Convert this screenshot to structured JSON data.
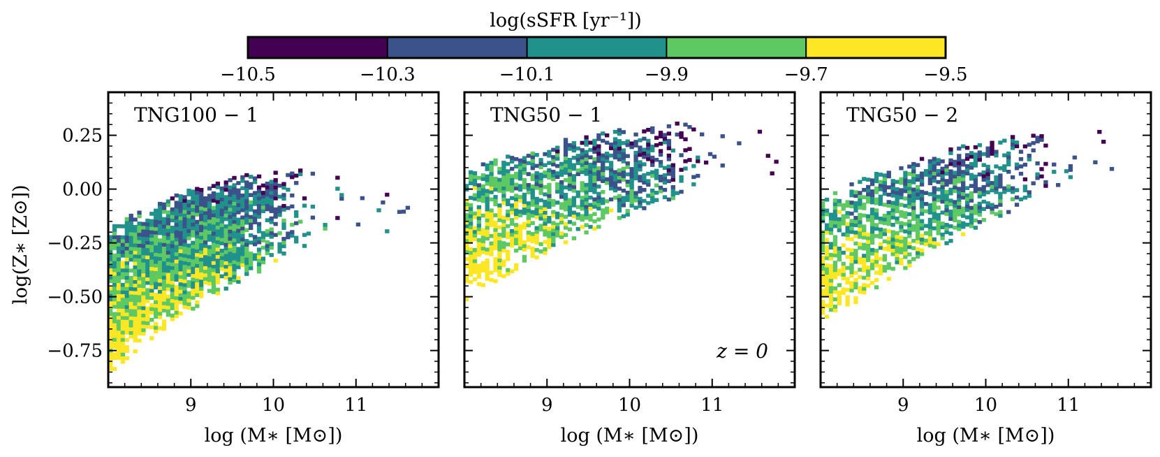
{
  "chart_data": {
    "type": "heatmap",
    "colorbar": {
      "label": "log(sSFR [yr⁻¹])",
      "ticks": [
        "−10.5",
        "−10.3",
        "−10.1",
        "−9.9",
        "−9.7",
        "−9.5"
      ],
      "range": [
        -10.5,
        -9.5
      ],
      "bins": [
        {
          "from": -10.5,
          "to": -10.3,
          "color": "#440154"
        },
        {
          "from": -10.3,
          "to": -10.1,
          "color": "#3b528b"
        },
        {
          "from": -10.1,
          "to": -9.9,
          "color": "#21918c"
        },
        {
          "from": -9.9,
          "to": -9.7,
          "color": "#5ec962"
        },
        {
          "from": -9.7,
          "to": -9.5,
          "color": "#fde725"
        }
      ]
    },
    "xlabel": "log (M∗ [M⊙])",
    "ylabel": "log(Z∗ [Z⊙])",
    "xlim": [
      8.0,
      12.0
    ],
    "ylim": [
      -0.92,
      0.45
    ],
    "xticks": [
      9,
      10,
      11
    ],
    "xtick_labels": [
      "9",
      "10",
      "11"
    ],
    "yticks": [
      0.25,
      0.0,
      -0.25,
      -0.5,
      -0.75
    ],
    "ytick_labels": [
      "0.25",
      "0.00",
      "−0.25",
      "−0.50",
      "−0.75"
    ],
    "annotation": "z = 0",
    "panels": [
      {
        "name": "TNG100 − 1",
        "shape": {
          "x_start": 8.0,
          "x_end": 11.9,
          "z_mid_start": -0.52,
          "z_mid_slope": 0.28,
          "z_mid_curve": -0.045,
          "z_width_start": 0.34,
          "z_width_end": 0.1,
          "fill": 0.96,
          "sfr_start": -9.75,
          "sfr_end": -10.35,
          "density_end": 9.5
        }
      },
      {
        "name": "TNG50 − 1",
        "shape": {
          "x_start": 8.0,
          "x_end": 11.95,
          "z_mid_start": -0.22,
          "z_mid_slope": 0.2,
          "z_mid_curve": -0.025,
          "z_width_start": 0.3,
          "z_width_end": 0.1,
          "fill": 0.7,
          "sfr_start": -9.7,
          "sfr_end": -10.45,
          "density_end": 10.0
        }
      },
      {
        "name": "TNG50 − 2",
        "shape": {
          "x_start": 8.0,
          "x_end": 11.6,
          "z_mid_start": -0.35,
          "z_mid_slope": 0.25,
          "z_mid_curve": -0.03,
          "z_width_start": 0.3,
          "z_width_end": 0.1,
          "fill": 0.72,
          "sfr_start": -9.7,
          "sfr_end": -10.4,
          "density_end": 9.8
        }
      }
    ]
  }
}
